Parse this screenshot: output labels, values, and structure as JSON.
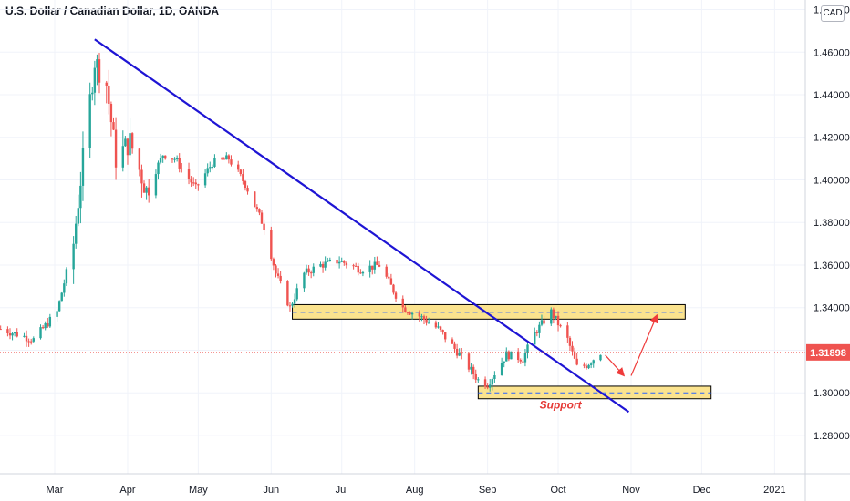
{
  "header": {
    "title": "U.S. Dollar / Canadian Dollar, 1D, OANDA",
    "currency": "CAD"
  },
  "colors": {
    "up": "#26a69a",
    "down": "#ef5350",
    "trendline": "#1e14d4",
    "zone_fill": "#fbe38e",
    "zone_border": "#000000",
    "zone_dash": "#2962ff",
    "arrow": "#ef3b3b",
    "price_line": "#ef5350",
    "price_badge": "#ef5350"
  },
  "chart_data": {
    "type": "candlestick",
    "symbol": "U.S. Dollar / Canadian Dollar",
    "timeframe": "1D",
    "source": "OANDA",
    "ylim": [
      1.262,
      1.4845
    ],
    "y_ticks": [
      {
        "value": 1.28,
        "label": "1.28000"
      },
      {
        "value": 1.3,
        "label": "1.30000"
      },
      {
        "value": 1.32,
        "label": "1.32000"
      },
      {
        "value": 1.34,
        "label": "1.34000"
      },
      {
        "value": 1.36,
        "label": "1.36000"
      },
      {
        "value": 1.38,
        "label": "1.38000"
      },
      {
        "value": 1.4,
        "label": "1.40000"
      },
      {
        "value": 1.42,
        "label": "1.42000"
      },
      {
        "value": 1.44,
        "label": "1.44000"
      },
      {
        "value": 1.46,
        "label": "1.46000"
      },
      {
        "value": 1.48,
        "label": "1.48000"
      }
    ],
    "x_ticks": [
      {
        "date": "2020-03-01",
        "label": "Mar"
      },
      {
        "date": "2020-04-01",
        "label": "Apr"
      },
      {
        "date": "2020-05-01",
        "label": "May"
      },
      {
        "date": "2020-06-01",
        "label": "Jun"
      },
      {
        "date": "2020-07-01",
        "label": "Jul"
      },
      {
        "date": "2020-08-01",
        "label": "Aug"
      },
      {
        "date": "2020-09-01",
        "label": "Sep"
      },
      {
        "date": "2020-10-01",
        "label": "Oct"
      },
      {
        "date": "2020-11-01",
        "label": "Nov"
      },
      {
        "date": "2020-12-01",
        "label": "Dec"
      },
      {
        "date": "2021-01-01",
        "label": "2021"
      }
    ],
    "date_range": [
      "2020-02-07",
      "2021-01-31"
    ],
    "current_price": {
      "value": 1.31898,
      "label": "1.31898"
    },
    "price_path": [
      {
        "date": "2020-02-07",
        "close": 1.33
      },
      {
        "date": "2020-02-21",
        "close": 1.325
      },
      {
        "date": "2020-03-02",
        "close": 1.338
      },
      {
        "date": "2020-03-09",
        "close": 1.37
      },
      {
        "date": "2020-03-12",
        "close": 1.4
      },
      {
        "date": "2020-03-18",
        "close": 1.456
      },
      {
        "date": "2020-03-23",
        "close": 1.445
      },
      {
        "date": "2020-03-27",
        "close": 1.41
      },
      {
        "date": "2020-04-02",
        "close": 1.418
      },
      {
        "date": "2020-04-09",
        "close": 1.395
      },
      {
        "date": "2020-04-16",
        "close": 1.412
      },
      {
        "date": "2020-04-21",
        "close": 1.41
      },
      {
        "date": "2020-04-30",
        "close": 1.396
      },
      {
        "date": "2020-05-07",
        "close": 1.408
      },
      {
        "date": "2020-05-14",
        "close": 1.41
      },
      {
        "date": "2020-05-21",
        "close": 1.398
      },
      {
        "date": "2020-05-29",
        "close": 1.378
      },
      {
        "date": "2020-06-03",
        "close": 1.356
      },
      {
        "date": "2020-06-09",
        "close": 1.34
      },
      {
        "date": "2020-06-15",
        "close": 1.356
      },
      {
        "date": "2020-06-22",
        "close": 1.36
      },
      {
        "date": "2020-06-30",
        "close": 1.362
      },
      {
        "date": "2020-07-09",
        "close": 1.358
      },
      {
        "date": "2020-07-17",
        "close": 1.36
      },
      {
        "date": "2020-07-27",
        "close": 1.34
      },
      {
        "date": "2020-08-03",
        "close": 1.336
      },
      {
        "date": "2020-08-11",
        "close": 1.33
      },
      {
        "date": "2020-08-20",
        "close": 1.318
      },
      {
        "date": "2020-08-28",
        "close": 1.306
      },
      {
        "date": "2020-09-01",
        "close": 1.304
      },
      {
        "date": "2020-09-09",
        "close": 1.318
      },
      {
        "date": "2020-09-16",
        "close": 1.316
      },
      {
        "date": "2020-09-21",
        "close": 1.328
      },
      {
        "date": "2020-09-28",
        "close": 1.338
      },
      {
        "date": "2020-10-05",
        "close": 1.325
      },
      {
        "date": "2020-10-09",
        "close": 1.312
      },
      {
        "date": "2020-10-13",
        "close": 1.313
      },
      {
        "date": "2020-10-19",
        "close": 1.319
      }
    ],
    "annotations": {
      "trendline": {
        "from": {
          "date": "2020-03-18",
          "value": 1.466
        },
        "to": {
          "date": "2020-10-31",
          "value": 1.291
        }
      },
      "resistance_zone": {
        "from_date": "2020-06-10",
        "to_date": "2020-11-24",
        "top": 1.3414,
        "bottom": 1.3346,
        "mid": 1.3378
      },
      "support_zone": {
        "from_date": "2020-08-28",
        "to_date": "2020-12-05",
        "top": 1.3031,
        "bottom": 1.2972,
        "mid": 1.3,
        "label": "Support"
      },
      "arrows": [
        {
          "from": {
            "date": "2020-10-21",
            "value": 1.3177
          },
          "to": {
            "date": "2020-10-29",
            "value": 1.308
          }
        },
        {
          "from": {
            "date": "2020-11-01",
            "value": 1.308
          },
          "to": {
            "date": "2020-11-12",
            "value": 1.3365
          }
        }
      ]
    }
  }
}
